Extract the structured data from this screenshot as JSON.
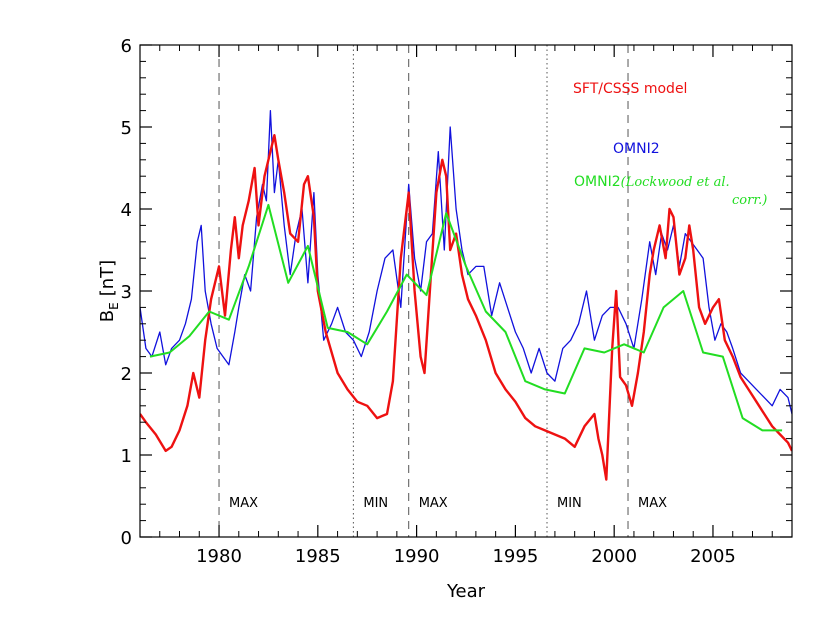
{
  "chart_data": {
    "type": "line",
    "xlabel": "Year",
    "ylabel_main": "B",
    "ylabel_sub": "E",
    "ylabel_unit": "[nT]",
    "xlim": [
      1976,
      2009
    ],
    "ylim": [
      0,
      6
    ],
    "x_ticks": [
      1980,
      1985,
      1990,
      1995,
      2000,
      2005
    ],
    "y_ticks": [
      0,
      1,
      2,
      3,
      4,
      5,
      6
    ],
    "grid": false,
    "legend_placement": "top-right",
    "legend": {
      "sft": "SFT/CSSS model",
      "omni": "OMNI2",
      "lockwood_prefix": "OMNI2",
      "lockwood_open": "(",
      "lockwood_italic_1": "Lockwood et al.",
      "lockwood_italic_2": "corr.",
      "lockwood_close": ")"
    },
    "vertical_lines": [
      {
        "x": 1980.0,
        "style": "dashed",
        "label": "MAX"
      },
      {
        "x": 1986.8,
        "style": "dotted",
        "label": "MIN"
      },
      {
        "x": 1989.6,
        "style": "dashed",
        "label": "MAX"
      },
      {
        "x": 1996.6,
        "style": "dotted",
        "label": "MIN"
      },
      {
        "x": 2000.7,
        "style": "dashed",
        "label": "MAX"
      }
    ],
    "series": [
      {
        "name": "SFT/CSSS model",
        "color": "#ee1111",
        "x": [
          1976.0,
          1976.3,
          1976.8,
          1977.3,
          1977.6,
          1978.0,
          1978.4,
          1978.7,
          1979.0,
          1979.3,
          1979.6,
          1980.0,
          1980.3,
          1980.6,
          1980.8,
          1981.0,
          1981.2,
          1981.5,
          1981.8,
          1982.0,
          1982.3,
          1982.6,
          1982.8,
          1983.0,
          1983.3,
          1983.6,
          1984.0,
          1984.3,
          1984.5,
          1984.8,
          1985.0,
          1985.4,
          1986.0,
          1986.5,
          1987.0,
          1987.5,
          1988.0,
          1988.5,
          1988.8,
          1989.2,
          1989.6,
          1989.9,
          1990.2,
          1990.4,
          1990.7,
          1991.0,
          1991.3,
          1991.5,
          1991.7,
          1992.0,
          1992.3,
          1992.6,
          1993.0,
          1993.5,
          1994.0,
          1994.5,
          1995.0,
          1995.5,
          1996.0,
          1996.5,
          1997.0,
          1997.5,
          1998.0,
          1998.5,
          1999.0,
          1999.2,
          1999.4,
          1999.6,
          1999.9,
          2000.1,
          2000.3,
          2000.6,
          2000.9,
          2001.2,
          2001.5,
          2001.8,
          2002.0,
          2002.3,
          2002.6,
          2002.8,
          2003.0,
          2003.3,
          2003.6,
          2003.8,
          2004.0,
          2004.3,
          2004.6,
          2005.0,
          2005.3,
          2005.6,
          2006.0,
          2006.4,
          2006.8,
          2007.2,
          2007.6,
          2008.0,
          2008.4,
          2008.8,
          2009.0
        ],
        "values": [
          1.5,
          1.4,
          1.25,
          1.05,
          1.1,
          1.3,
          1.6,
          2.0,
          1.7,
          2.4,
          2.9,
          3.3,
          2.7,
          3.5,
          3.9,
          3.4,
          3.8,
          4.1,
          4.5,
          3.8,
          4.4,
          4.7,
          4.9,
          4.6,
          4.2,
          3.7,
          3.6,
          4.3,
          4.4,
          3.9,
          3.0,
          2.5,
          2.0,
          1.8,
          1.65,
          1.6,
          1.45,
          1.5,
          1.9,
          3.4,
          4.2,
          3.0,
          2.2,
          2.0,
          3.1,
          4.2,
          4.6,
          4.4,
          3.5,
          3.7,
          3.2,
          2.9,
          2.7,
          2.4,
          2.0,
          1.8,
          1.65,
          1.45,
          1.35,
          1.3,
          1.25,
          1.2,
          1.1,
          1.35,
          1.5,
          1.2,
          1.0,
          0.7,
          2.3,
          3.0,
          1.95,
          1.85,
          1.6,
          2.0,
          2.5,
          3.2,
          3.5,
          3.8,
          3.4,
          4.0,
          3.9,
          3.2,
          3.4,
          3.8,
          3.5,
          2.8,
          2.6,
          2.8,
          2.9,
          2.4,
          2.2,
          1.95,
          1.8,
          1.65,
          1.5,
          1.35,
          1.25,
          1.15,
          1.05
        ]
      },
      {
        "name": "OMNI2",
        "color": "#1111dd",
        "x": [
          1976.0,
          1976.3,
          1976.6,
          1977.0,
          1977.3,
          1977.6,
          1978.0,
          1978.3,
          1978.6,
          1978.9,
          1979.1,
          1979.3,
          1979.6,
          1979.9,
          1980.2,
          1980.5,
          1980.8,
          1981.0,
          1981.3,
          1981.6,
          1981.9,
          1982.2,
          1982.4,
          1982.6,
          1982.8,
          1983.0,
          1983.3,
          1983.6,
          1983.9,
          1984.2,
          1984.5,
          1984.8,
          1985.0,
          1985.3,
          1985.7,
          1986.0,
          1986.4,
          1986.8,
          1987.2,
          1987.6,
          1988.0,
          1988.4,
          1988.8,
          1989.2,
          1989.6,
          1989.9,
          1990.2,
          1990.5,
          1990.8,
          1991.1,
          1991.4,
          1991.7,
          1992.0,
          1992.3,
          1992.6,
          1993.0,
          1993.4,
          1993.8,
          1994.2,
          1994.6,
          1995.0,
          1995.4,
          1995.8,
          1996.2,
          1996.6,
          1997.0,
          1997.4,
          1997.8,
          1998.2,
          1998.6,
          1999.0,
          1999.4,
          1999.8,
          2000.2,
          2000.6,
          2001.0,
          2001.4,
          2001.8,
          2002.1,
          2002.4,
          2002.7,
          2003.0,
          2003.3,
          2003.6,
          2003.9,
          2004.2,
          2004.5,
          2004.8,
          2005.1,
          2005.4,
          2005.7,
          2006.0,
          2006.4,
          2006.8,
          2007.2,
          2007.6,
          2008.0,
          2008.4,
          2008.8,
          2009.0
        ],
        "values": [
          2.8,
          2.3,
          2.2,
          2.5,
          2.1,
          2.3,
          2.4,
          2.6,
          2.9,
          3.6,
          3.8,
          3.0,
          2.6,
          2.3,
          2.2,
          2.1,
          2.5,
          2.8,
          3.2,
          3.0,
          3.9,
          4.3,
          4.1,
          5.2,
          4.2,
          4.6,
          3.8,
          3.2,
          3.7,
          4.0,
          3.1,
          4.2,
          3.2,
          2.4,
          2.6,
          2.8,
          2.5,
          2.4,
          2.2,
          2.5,
          3.0,
          3.4,
          3.5,
          2.8,
          4.3,
          3.4,
          3.0,
          3.6,
          3.7,
          4.7,
          3.5,
          5.0,
          4.0,
          3.5,
          3.2,
          3.3,
          3.3,
          2.7,
          3.1,
          2.8,
          2.5,
          2.3,
          2.0,
          2.3,
          2.0,
          1.9,
          2.3,
          2.4,
          2.6,
          3.0,
          2.4,
          2.7,
          2.8,
          2.8,
          2.6,
          2.3,
          2.9,
          3.6,
          3.2,
          3.7,
          3.5,
          3.8,
          3.3,
          3.7,
          3.6,
          3.5,
          3.4,
          2.8,
          2.4,
          2.6,
          2.5,
          2.3,
          2.0,
          1.9,
          1.8,
          1.7,
          1.6,
          1.8,
          1.7,
          1.5
        ]
      },
      {
        "name": "OMNI2 (Lockwood et al. corr.)",
        "color": "#22dd22",
        "x": [
          1976.5,
          1977.5,
          1978.5,
          1979.5,
          1980.5,
          1981.5,
          1982.5,
          1983.5,
          1984.5,
          1985.5,
          1986.5,
          1987.5,
          1988.5,
          1989.5,
          1990.5,
          1991.5,
          1992.5,
          1993.5,
          1994.5,
          1995.5,
          1996.5,
          1997.5,
          1998.5,
          1999.5,
          2000.5,
          2001.5,
          2002.5,
          2003.5,
          2004.5,
          2005.5,
          2006.5,
          2007.5,
          2008.5
        ],
        "values": [
          2.2,
          2.25,
          2.45,
          2.75,
          2.65,
          3.3,
          4.05,
          3.1,
          3.55,
          2.55,
          2.5,
          2.35,
          2.75,
          3.2,
          2.95,
          3.95,
          3.3,
          2.75,
          2.5,
          1.9,
          1.8,
          1.75,
          2.3,
          2.25,
          2.35,
          2.25,
          2.8,
          3.0,
          2.25,
          2.2,
          1.45,
          1.3,
          1.3
        ]
      }
    ]
  }
}
